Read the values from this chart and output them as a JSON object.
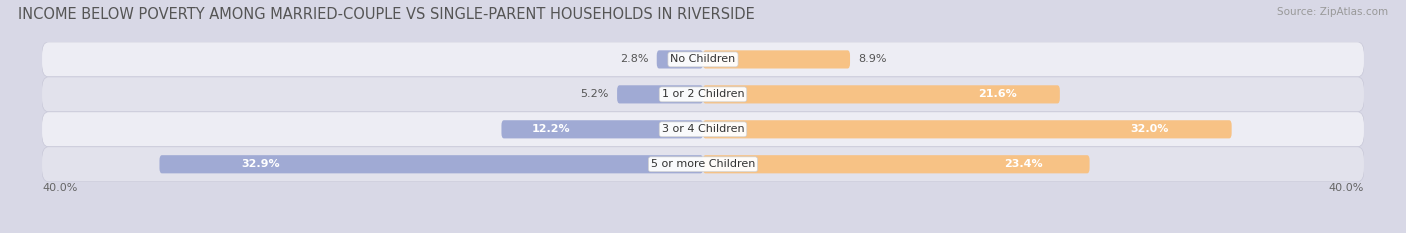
{
  "title": "INCOME BELOW POVERTY AMONG MARRIED-COUPLE VS SINGLE-PARENT HOUSEHOLDS IN RIVERSIDE",
  "source": "Source: ZipAtlas.com",
  "categories": [
    "No Children",
    "1 or 2 Children",
    "3 or 4 Children",
    "5 or more Children"
  ],
  "married_values": [
    2.8,
    5.2,
    12.2,
    32.9
  ],
  "single_values": [
    8.9,
    21.6,
    32.0,
    23.4
  ],
  "married_color": "#a0aad4",
  "single_color": "#f7c285",
  "max_val": 40.0,
  "axis_label": "40.0%",
  "title_fontsize": 10.5,
  "source_fontsize": 7.5,
  "label_fontsize": 8,
  "category_fontsize": 8,
  "bar_height": 0.52,
  "row_bg_even": "#ededf4",
  "row_bg_odd": "#e2e2ec",
  "background_color": "#d8d8e6",
  "row_outline": "#c8c8d8",
  "text_dark": "#555555",
  "text_light": "#ffffff"
}
